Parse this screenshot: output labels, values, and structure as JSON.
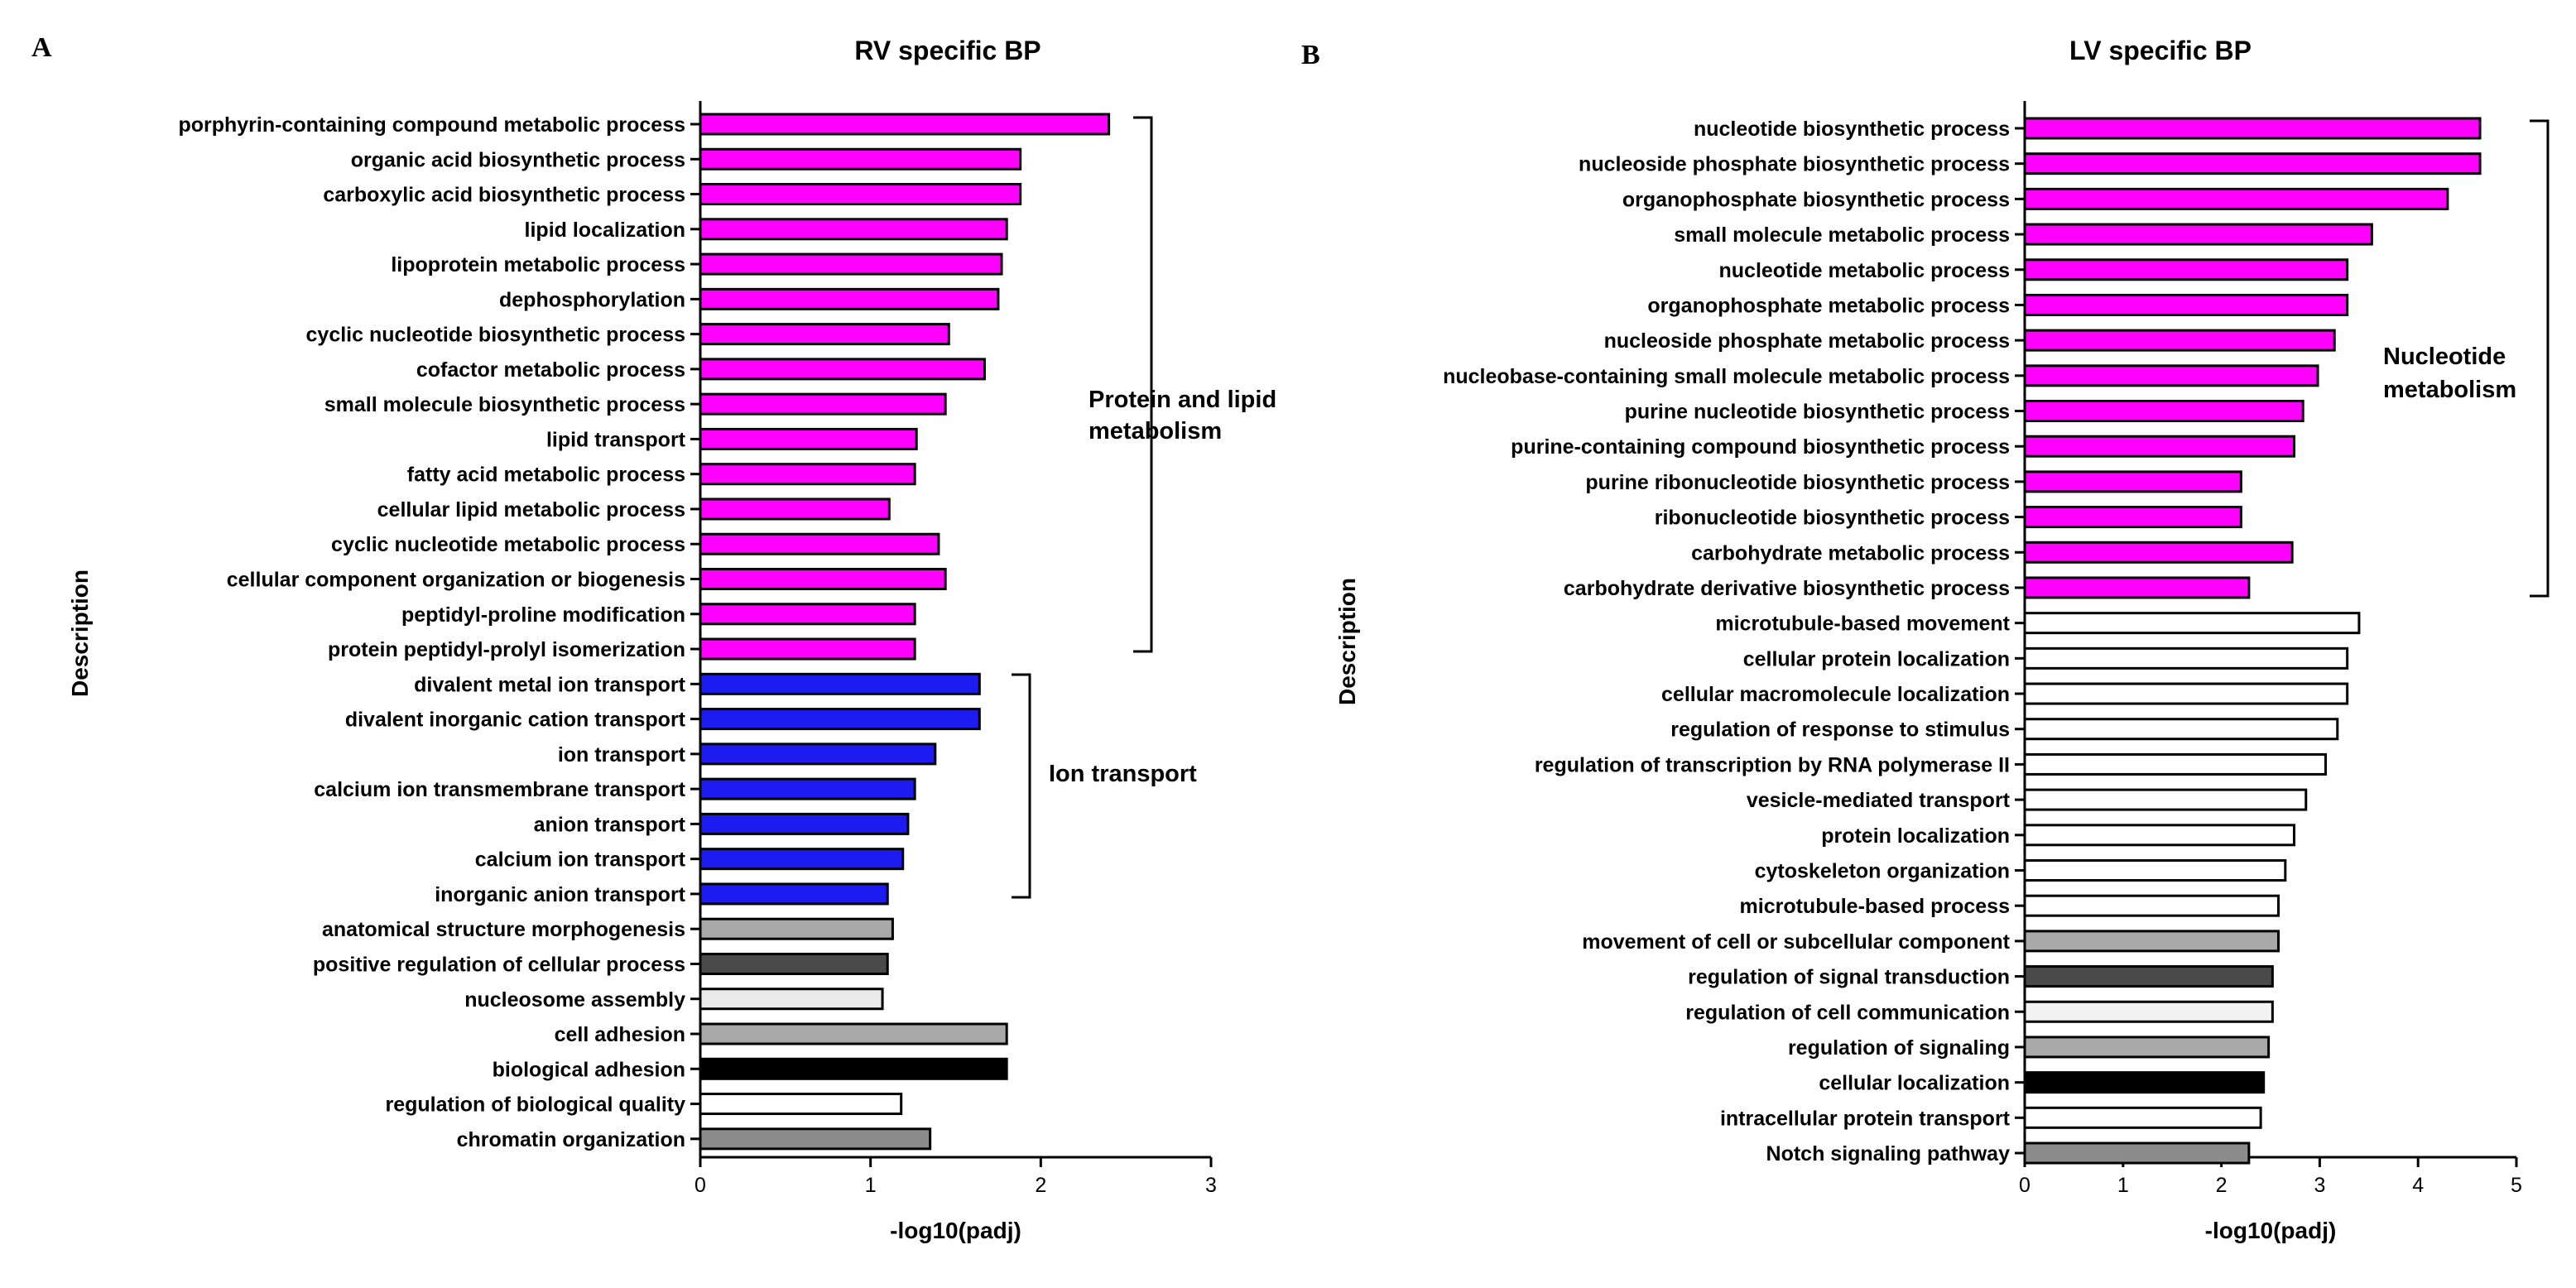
{
  "chart_data": [
    {
      "type": "bar",
      "orientation": "horizontal",
      "panel_label": "A",
      "title": "RV specific BP",
      "xlabel": "-log10(padj)",
      "ylabel": "Description",
      "xlim": [
        0,
        3
      ],
      "xticks": [
        "0",
        "1",
        "2",
        "3"
      ],
      "grid": false,
      "categories": [
        "porphyrin-containing compound metabolic process",
        "organic acid biosynthetic process",
        "carboxylic acid biosynthetic process",
        "lipid localization",
        "lipoprotein metabolic process",
        "dephosphorylation",
        "cyclic nucleotide biosynthetic process",
        "cofactor metabolic process",
        "small molecule biosynthetic process",
        "lipid transport",
        "fatty acid metabolic process",
        "cellular lipid metabolic process",
        "cyclic nucleotide metabolic process",
        "cellular component organization or biogenesis",
        "peptidyl-proline modification",
        "protein peptidyl-prolyl isomerization",
        "divalent metal ion transport",
        "divalent inorganic cation transport",
        "ion transport",
        "calcium ion transmembrane transport",
        "anion transport",
        "calcium ion transport",
        "inorganic anion transport",
        "anatomical structure morphogenesis",
        "positive regulation of cellular process",
        "nucleosome assembly",
        "cell adhesion",
        "biological adhesion",
        "regulation of biological quality",
        "chromatin organization"
      ],
      "values": [
        2.4,
        1.88,
        1.88,
        1.8,
        1.77,
        1.75,
        1.46,
        1.67,
        1.44,
        1.27,
        1.26,
        1.11,
        1.4,
        1.44,
        1.26,
        1.26,
        1.64,
        1.64,
        1.38,
        1.26,
        1.22,
        1.19,
        1.1,
        1.13,
        1.1,
        1.07,
        1.8,
        1.8,
        1.18,
        1.35
      ],
      "colors": [
        "#FF00FF",
        "#FF00FF",
        "#FF00FF",
        "#FF00FF",
        "#FF00FF",
        "#FF00FF",
        "#FF00FF",
        "#FF00FF",
        "#FF00FF",
        "#FF00FF",
        "#FF00FF",
        "#FF00FF",
        "#FF00FF",
        "#FF00FF",
        "#FF00FF",
        "#FF00FF",
        "#1C1CF0",
        "#1C1CF0",
        "#1C1CF0",
        "#1C1CF0",
        "#1C1CF0",
        "#1C1CF0",
        "#1C1CF0",
        "#A8A8A8",
        "#4A4A4A",
        "#EBEBEB",
        "#A8A8A8",
        "#000000",
        "#FFFFFF",
        "#8C8C8C"
      ],
      "annotations": [
        {
          "lines": [
            "Protein and lipid",
            "metabolism"
          ],
          "from": 0,
          "to": 15
        },
        {
          "lines": [
            "Ion transport"
          ],
          "from": 16,
          "to": 22
        }
      ]
    },
    {
      "type": "bar",
      "orientation": "horizontal",
      "panel_label": "B",
      "title": "LV specific BP",
      "xlabel": "-log10(padj)",
      "ylabel": "Description",
      "xlim": [
        0,
        5
      ],
      "xticks": [
        "0",
        "1",
        "2",
        "3",
        "4",
        "5"
      ],
      "grid": false,
      "categories": [
        "nucleotide biosynthetic process",
        "nucleoside phosphate biosynthetic process",
        "organophosphate biosynthetic process",
        "small molecule metabolic process",
        "nucleotide metabolic process",
        "organophosphate metabolic process",
        "nucleoside phosphate metabolic process",
        "nucleobase-containing small molecule metabolic process",
        "purine nucleotide biosynthetic process",
        "purine-containing compound biosynthetic process",
        "purine ribonucleotide biosynthetic process",
        "ribonucleotide biosynthetic process",
        "carbohydrate metabolic process",
        "carbohydrate derivative biosynthetic process",
        "microtubule-based movement",
        "cellular protein localization",
        "cellular macromolecule localization",
        "regulation of response to stimulus",
        "regulation of transcription by RNA polymerase II",
        "vesicle-mediated transport",
        "protein localization",
        "cytoskeleton organization",
        "microtubule-based process",
        "movement of cell or subcellular component",
        "regulation of signal transduction",
        "regulation of cell communication",
        "regulation of signaling",
        "cellular localization",
        "intracellular protein transport",
        "Notch signaling pathway"
      ],
      "values": [
        4.63,
        4.63,
        4.3,
        3.53,
        3.28,
        3.28,
        3.15,
        2.98,
        2.83,
        2.74,
        2.2,
        2.2,
        2.72,
        2.28,
        3.4,
        3.28,
        3.28,
        3.18,
        3.06,
        2.86,
        2.74,
        2.65,
        2.58,
        2.58,
        2.52,
        2.52,
        2.48,
        2.43,
        2.4,
        2.28
      ],
      "colors": [
        "#FF00FF",
        "#FF00FF",
        "#FF00FF",
        "#FF00FF",
        "#FF00FF",
        "#FF00FF",
        "#FF00FF",
        "#FF00FF",
        "#FF00FF",
        "#FF00FF",
        "#FF00FF",
        "#FF00FF",
        "#FF00FF",
        "#FF00FF",
        "#FFFFFF",
        "#FFFFFF",
        "#FFFFFF",
        "#FFFFFF",
        "#FFFFFF",
        "#FFFFFF",
        "#FFFFFF",
        "#FFFFFF",
        "#FFFFFF",
        "#A8A8A8",
        "#4A4A4A",
        "#F2F2F2",
        "#A8A8A8",
        "#000000",
        "#FFFFFF",
        "#8C8C8C"
      ],
      "annotations": [
        {
          "lines": [
            "Nucleotide",
            "metabolism"
          ],
          "from": 0,
          "to": 13
        }
      ]
    }
  ]
}
